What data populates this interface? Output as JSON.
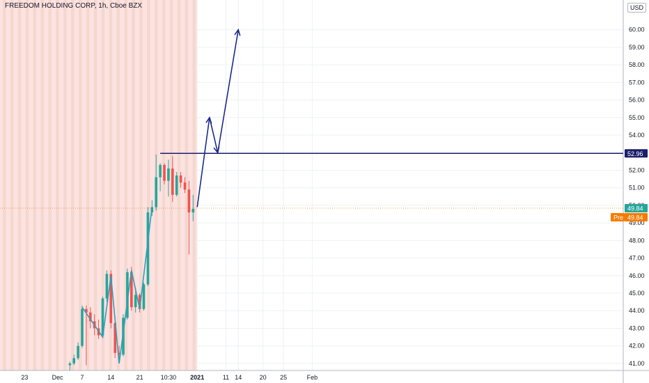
{
  "chart_data": {
    "type": "candlestick",
    "title": "FREEDOM HOLDING CORP, 1h, Cboe BZX",
    "unit": "USD",
    "ylim": [
      40.6,
      60.9
    ],
    "yticks": [
      41,
      42,
      43,
      44,
      45,
      46,
      47,
      48,
      49,
      50,
      51,
      52,
      53,
      54,
      55,
      56,
      57,
      58,
      59,
      60
    ],
    "ytick_labels": [
      "41.00",
      "42.00",
      "43.00",
      "44.00",
      "45.00",
      "46.00",
      "47.00",
      "48.00",
      "49.00",
      "50.00",
      "51.00",
      "52.00",
      "53.00",
      "54.00",
      "55.00",
      "56.00",
      "57.00",
      "58.00",
      "59.00",
      "60.00"
    ],
    "x_tick_labels": [
      "23",
      "Dec",
      "7",
      "14",
      "21",
      "10:30",
      "2021",
      "11",
      "14",
      "20",
      "25",
      "Feb"
    ],
    "x_tick_dates": [
      "2020-11-23",
      "2020-12-01",
      "2020-12-07",
      "2020-12-14",
      "2020-12-21",
      "2020-12-28",
      "2021-01-04",
      "2021-01-11",
      "2021-01-14",
      "2021-01-20",
      "2021-01-25",
      "2021-02-01"
    ],
    "candles": [
      {
        "x": "2020-12-04",
        "o": 40.9,
        "h": 41.1,
        "l": 40.6,
        "c": 41.0
      },
      {
        "x": "2020-12-05",
        "o": 41.0,
        "h": 41.5,
        "l": 40.9,
        "c": 41.3
      },
      {
        "x": "2020-12-06",
        "o": 41.3,
        "h": 42.2,
        "l": 41.2,
        "c": 42.0
      },
      {
        "x": "2020-12-07",
        "o": 42.0,
        "h": 44.3,
        "l": 41.9,
        "c": 44.1
      },
      {
        "x": "2020-12-08",
        "o": 44.1,
        "h": 44.3,
        "l": 40.9,
        "c": 43.9
      },
      {
        "x": "2020-12-09",
        "o": 43.9,
        "h": 44.2,
        "l": 43.0,
        "c": 43.4
      },
      {
        "x": "2020-12-10",
        "o": 43.4,
        "h": 43.8,
        "l": 42.6,
        "c": 43.0
      },
      {
        "x": "2020-12-11",
        "o": 43.0,
        "h": 43.5,
        "l": 42.4,
        "c": 42.6
      },
      {
        "x": "2020-12-12",
        "o": 42.6,
        "h": 44.8,
        "l": 42.5,
        "c": 44.7
      },
      {
        "x": "2020-12-13",
        "o": 44.7,
        "h": 46.3,
        "l": 44.5,
        "c": 46.1
      },
      {
        "x": "2020-12-14",
        "o": 46.1,
        "h": 46.3,
        "l": 43.0,
        "c": 43.3
      },
      {
        "x": "2020-12-15",
        "o": 43.3,
        "h": 43.7,
        "l": 41.3,
        "c": 41.6
      },
      {
        "x": "2020-12-16",
        "o": 41.6,
        "h": 42.0,
        "l": 41.0,
        "c": 41.5
      },
      {
        "x": "2020-12-17",
        "o": 41.5,
        "h": 43.8,
        "l": 41.4,
        "c": 43.6
      },
      {
        "x": "2020-12-18",
        "o": 43.6,
        "h": 46.4,
        "l": 43.5,
        "c": 46.2
      },
      {
        "x": "2020-12-19",
        "o": 46.2,
        "h": 46.5,
        "l": 44.0,
        "c": 44.2
      },
      {
        "x": "2020-12-20",
        "o": 44.2,
        "h": 45.3,
        "l": 43.9,
        "c": 44.9
      },
      {
        "x": "2020-12-21",
        "o": 44.9,
        "h": 45.0,
        "l": 43.9,
        "c": 44.1
      },
      {
        "x": "2020-12-22",
        "o": 44.1,
        "h": 45.6,
        "l": 44.0,
        "c": 45.5
      },
      {
        "x": "2020-12-23",
        "o": 45.5,
        "h": 49.9,
        "l": 45.4,
        "c": 49.6
      },
      {
        "x": "2020-12-24",
        "o": 49.6,
        "h": 50.3,
        "l": 49.4,
        "c": 49.9
      },
      {
        "x": "2020-12-25",
        "o": 49.9,
        "h": 52.9,
        "l": 49.7,
        "c": 51.6
      },
      {
        "x": "2020-12-26",
        "o": 51.6,
        "h": 52.4,
        "l": 50.8,
        "c": 52.3
      },
      {
        "x": "2020-12-27",
        "o": 52.3,
        "h": 52.4,
        "l": 51.2,
        "c": 51.4
      },
      {
        "x": "2020-12-28",
        "o": 51.4,
        "h": 52.6,
        "l": 50.5,
        "c": 52.1
      },
      {
        "x": "2020-12-29",
        "o": 52.1,
        "h": 52.8,
        "l": 50.2,
        "c": 50.6
      },
      {
        "x": "2020-12-30",
        "o": 50.6,
        "h": 51.9,
        "l": 50.5,
        "c": 51.7
      },
      {
        "x": "2020-12-31",
        "o": 51.7,
        "h": 51.9,
        "l": 51.0,
        "c": 51.3
      },
      {
        "x": "2021-01-01",
        "o": 51.3,
        "h": 51.6,
        "l": 50.7,
        "c": 50.9
      },
      {
        "x": "2021-01-02",
        "o": 50.9,
        "h": 51.4,
        "l": 47.2,
        "c": 49.6
      },
      {
        "x": "2021-01-03",
        "o": 49.6,
        "h": 50.6,
        "l": 49.1,
        "c": 49.8
      }
    ],
    "zigzag": [
      {
        "x": "2020-12-07",
        "y": 44.2
      },
      {
        "x": "2020-12-12",
        "y": 42.5
      },
      {
        "x": "2020-12-14",
        "y": 46.0
      },
      {
        "x": "2020-12-16",
        "y": 41.0
      },
      {
        "x": "2020-12-19",
        "y": 46.3
      },
      {
        "x": "2020-12-21",
        "y": 44.1
      },
      {
        "x": "2020-12-24",
        "y": 49.9
      }
    ],
    "projection": [
      {
        "x": "2021-01-04",
        "y": 49.9
      },
      {
        "x": "2021-01-07",
        "y": 55.0
      },
      {
        "x": "2021-01-09",
        "y": 53.0
      },
      {
        "x": "2021-01-14",
        "y": 60.0
      }
    ],
    "resistance": {
      "y": 52.96,
      "x_start": "2020-12-26",
      "label": "52.96"
    },
    "last_price": {
      "y": 49.84,
      "label": "49.84"
    },
    "premarket": {
      "y": 49.84,
      "label": "49.84",
      "tag": "Pre"
    },
    "session_shading_end": "2021-01-04",
    "colors": {
      "up": "#26a69a",
      "down": "#ef5350",
      "zigzag": "#2e9fba",
      "projection": "#1b2a8a",
      "resistance": "#1b1f6b",
      "last_price": "#26a69a",
      "premarket": "#f57c00",
      "shade_light": "#fde2e2",
      "shade_dark": "#f0d4c8",
      "grid": "#eef0f3"
    }
  }
}
